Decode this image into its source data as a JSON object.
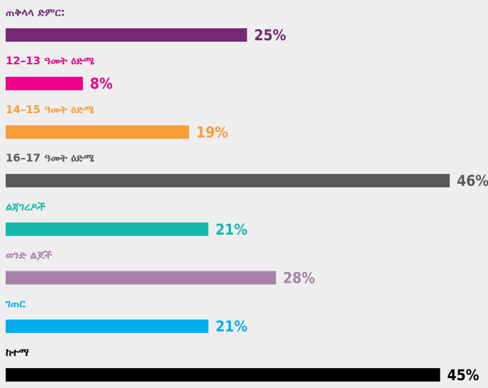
{
  "chart_data": {
    "type": "bar",
    "categories": [
      "ጠቅላላ ድምር:",
      "12–13 ዓመት ዕድሜ",
      "14–15 ዓመት ዕድሜ",
      "16–17 ዓመት ዕድሜ",
      "ልጃገረዶች",
      "ወንድ ልጆች",
      "ገጠር",
      "ከተማ"
    ],
    "values": [
      25,
      8,
      19,
      46,
      21,
      28,
      21,
      45
    ],
    "value_labels": [
      "25%",
      "8%",
      "19%",
      "46%",
      "21%",
      "28%",
      "21%",
      "45%"
    ],
    "colors": [
      "#742a75",
      "#ec008c",
      "#f99d38",
      "#58595b",
      "#14b8ab",
      "#a680a8",
      "#00aeef",
      "#000000"
    ]
  }
}
